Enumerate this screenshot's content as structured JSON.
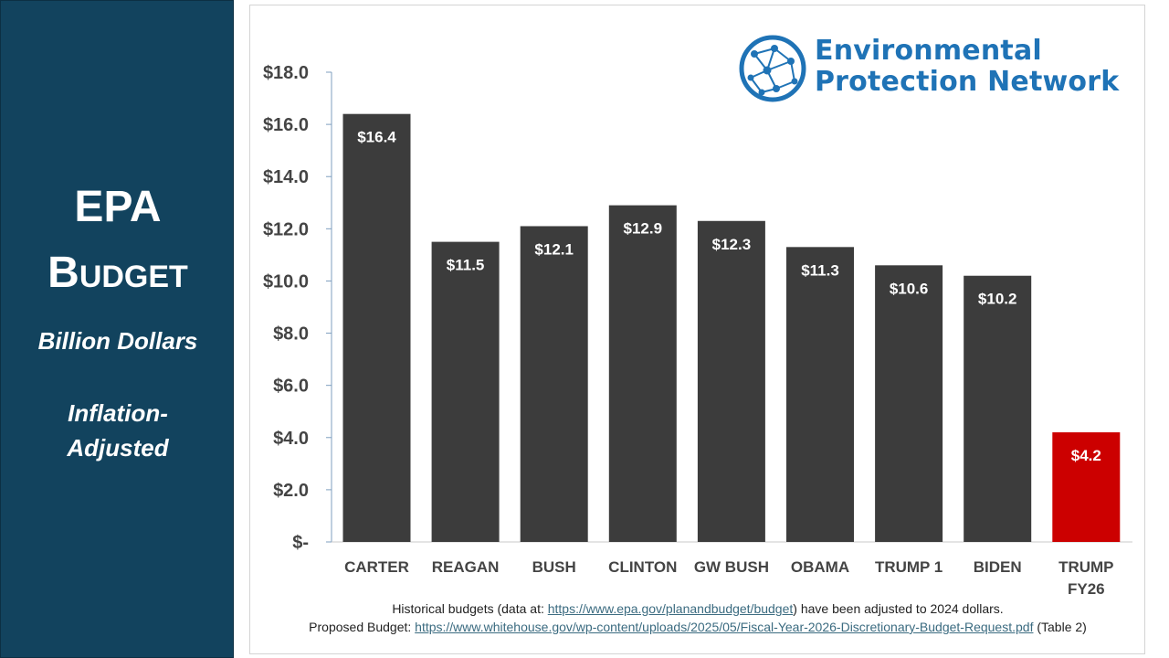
{
  "sidebar": {
    "title_line1": "EPA",
    "title_line2": "Budget",
    "subtitle": "Billion Dollars",
    "note": "Inflation-Adjusted",
    "background": "#12435e"
  },
  "logo": {
    "line1": "Environmental",
    "line2": "Protection Network",
    "icon": "network-globe-icon",
    "color": "#1f73b6"
  },
  "chart_data": {
    "type": "bar",
    "categories": [
      "CARTER",
      "REAGAN",
      "BUSH",
      "CLINTON",
      "GW BUSH",
      "OBAMA",
      "TRUMP 1",
      "BIDEN",
      "TRUMP FY26"
    ],
    "values": [
      16.4,
      11.5,
      12.1,
      12.9,
      12.3,
      11.3,
      10.6,
      10.2,
      4.2
    ],
    "data_labels": [
      "$16.4",
      "$11.5",
      "$12.1",
      "$12.9",
      "$12.3",
      "$11.3",
      "$10.6",
      "$10.2",
      "$4.2"
    ],
    "y_ticks": [
      0,
      2,
      4,
      6,
      8,
      10,
      12,
      14,
      16,
      18
    ],
    "y_tick_labels": [
      "$-",
      "$2.0",
      "$4.0",
      "$6.0",
      "$8.0",
      "$10.0",
      "$12.0",
      "$14.0",
      "$16.0",
      "$18.0"
    ],
    "ylim": [
      0,
      18
    ],
    "grid": false,
    "bar_color": "#3c3c3c",
    "highlight_color": "#cc0000",
    "highlight_index": 8,
    "label_color": "#ffffff"
  },
  "footnote": {
    "line1_prefix": "Historical budgets (data at: ",
    "line1_link": "https://www.epa.gov/planandbudget/budget",
    "line1_suffix": ") have been adjusted to 2024 dollars.",
    "line2_prefix": "Proposed Budget: ",
    "line2_link": "https://www.whitehouse.gov/wp-content/uploads/2025/05/Fiscal-Year-2026-Discretionary-Budget-Request.pdf",
    "line2_suffix": " (Table 2)"
  }
}
